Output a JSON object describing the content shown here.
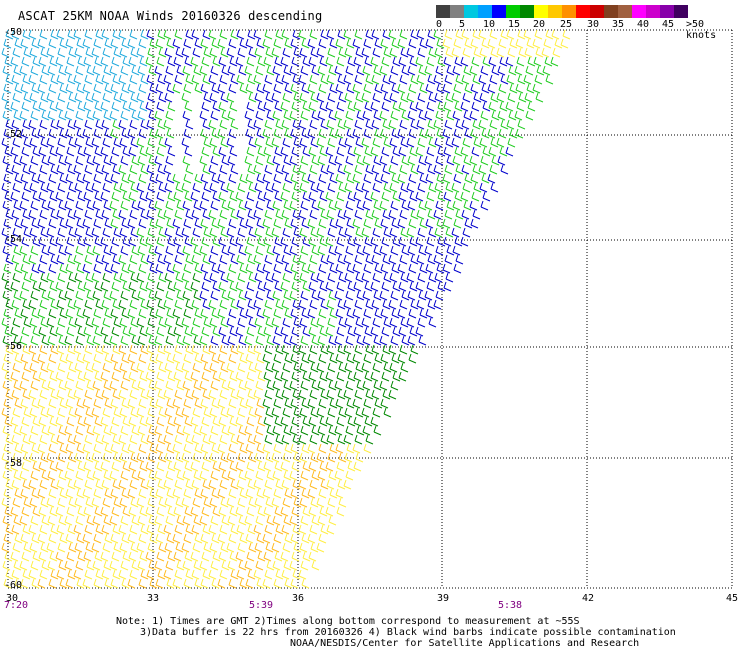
{
  "title": "ASCAT 25KM NOAA Winds 20160326 descending",
  "legend": {
    "colors": [
      "#404040",
      "#808080",
      "#00c8e0",
      "#00a0ff",
      "#0000ff",
      "#00cc00",
      "#008800",
      "#ffff00",
      "#ffc800",
      "#ff9000",
      "#ff0000",
      "#cc0000",
      "#804020",
      "#a06040",
      "#ff00ff",
      "#cc00cc",
      "#8800aa",
      "#400060"
    ],
    "labels": [
      "0",
      "5",
      "10",
      "15",
      "20",
      "25",
      "30",
      "35",
      "40",
      "45",
      ">50 knots"
    ]
  },
  "lat_labels": [
    "-50",
    "-52",
    "-54",
    "-56",
    "-58",
    "-60"
  ],
  "lon_labels": [
    "30",
    "33",
    "36",
    "39",
    "42",
    "45"
  ],
  "time_labels": [
    "7:20",
    "5:39",
    "5:38"
  ],
  "notes": [
    "Note: 1) Times are GMT 2)Times along bottom correspond to measurement at ~55S",
    "3)Data buffer is 22 hrs from 20160326 4) Black wind barbs indicate possible contamination",
    "NOAA/NESDIS/Center for Satellite Applications and Research"
  ],
  "barb_colors": {
    "light_blue": "#22aadd",
    "blue": "#0000cc",
    "green": "#22cc22",
    "dark_green": "#008800",
    "yellow": "#ffee44",
    "orange": "#ffbb22"
  }
}
